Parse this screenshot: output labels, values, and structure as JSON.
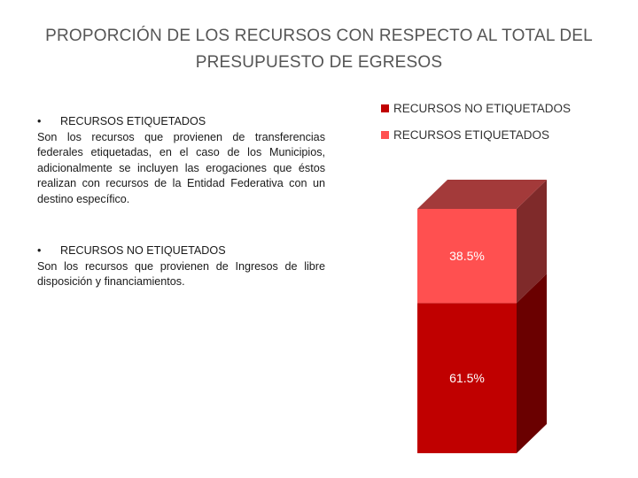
{
  "title": {
    "line1": "PROPORCIÓN DE LOS RECURSOS CON RESPECTO AL TOTAL DEL",
    "line2": "PRESUPUESTO DE EGRESOS"
  },
  "blocks": [
    {
      "bullet": "•",
      "heading": "RECURSOS ETIQUETADOS",
      "description": "Son los recursos que provienen de transferencias federales etiquetadas, en el caso de los Municipios, adicionalmente se incluyen las erogaciones que éstos realizan con recursos de la Entidad Federativa con un destino específico."
    },
    {
      "bullet": "•",
      "heading": "RECURSOS NO ETIQUETADOS",
      "description": "Son los recursos que provienen de Ingresos de libre disposición y financiamientos."
    }
  ],
  "chart_data": {
    "type": "bar",
    "stacked": true,
    "three_d": true,
    "legend_position": "top-right",
    "grid": false,
    "ylim": [
      0,
      100
    ],
    "series": [
      {
        "name": "RECURSOS NO ETIQUETADOS",
        "value": 61.5,
        "label": "61.5%",
        "color": "#c00000",
        "side_color": "#6a0000",
        "top_color": "#a33030"
      },
      {
        "name": "RECURSOS ETIQUETADOS",
        "value": 38.5,
        "label": "38.5%",
        "color": "#ff5050",
        "side_color": "#7f2a2a",
        "top_color": "#a33a3a"
      }
    ]
  }
}
